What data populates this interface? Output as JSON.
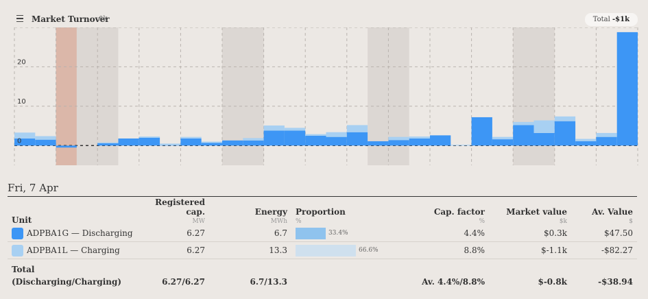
{
  "header": {
    "title": "Market Turnover",
    "unit": "$k",
    "total_label": "Total",
    "total_value": "-$1k"
  },
  "chart_data": {
    "type": "bar",
    "stacked": true,
    "y_ticks": [
      "0",
      "10",
      "20"
    ],
    "ylim": [
      -5,
      30
    ],
    "highlighted_periods": [
      [
        2,
        3
      ],
      [
        3,
        5
      ],
      [
        10,
        12
      ],
      [
        17,
        19
      ],
      [
        24,
        26
      ]
    ],
    "highlight_red_period": [
      2,
      3
    ],
    "series": [
      {
        "name": "ADPBA1G — Discharging",
        "color": "#3d96f5",
        "values": [
          1.8,
          1.5,
          -0.5,
          0,
          0.6,
          1.8,
          2.0,
          0.1,
          1.8,
          0.7,
          1.3,
          1.3,
          3.8,
          3.8,
          2.5,
          2.2,
          3.4,
          1.1,
          1.4,
          1.8,
          2.6,
          0,
          7.2,
          1.6,
          5.2,
          3.2,
          6.2,
          1.1,
          2.2,
          28.8
        ]
      },
      {
        "name": "ADPBA1L — Charging",
        "color": "#a8d0f2",
        "values": [
          1.5,
          0.9,
          0,
          0,
          0.2,
          0,
          0.3,
          0.4,
          0.4,
          0.3,
          0,
          0.6,
          1.3,
          0.7,
          0.4,
          1.2,
          1.8,
          0,
          0.8,
          0.5,
          0,
          0.2,
          0,
          0.6,
          0.8,
          3.2,
          1.2,
          0.6,
          1.0,
          0
        ]
      }
    ]
  },
  "date": "Fri, 7 Apr",
  "table": {
    "headers": {
      "unit": "Unit",
      "reg_cap": "Registered cap.",
      "reg_cap_unit": "MW",
      "energy": "Energy",
      "energy_unit": "MWh",
      "proportion": "Proportion",
      "proportion_unit": "%",
      "cap_factor": "Cap. factor",
      "cap_factor_unit": "%",
      "market_value": "Market value",
      "market_value_unit": "$k",
      "av_value": "Av. Value",
      "av_value_unit": "$"
    },
    "rows": [
      {
        "unit": "ADPBA1G — Discharging",
        "color": "#3d96f5",
        "reg_cap": "6.27",
        "energy": "6.7",
        "proportion": "33.4%",
        "proportion_fraction": 0.334,
        "cap_factor": "4.4%",
        "market_value": "$0.3k",
        "av_value": "$47.50"
      },
      {
        "unit": "ADPBA1L — Charging",
        "color": "#a8d0f2",
        "reg_cap": "6.27",
        "energy": "13.3",
        "proportion": "66.6%",
        "proportion_fraction": 0.666,
        "cap_factor": "8.8%",
        "market_value": "$-1.1k",
        "av_value": "-$82.27"
      }
    ],
    "total": {
      "label1": "Total",
      "label2": "(Discharging/Charging)",
      "reg_cap": "6.27/6.27",
      "energy": "6.7/13.3",
      "cap_factor": "Av. 4.4%/8.8%",
      "market_value": "$-0.8k",
      "av_value": "-$38.94"
    }
  },
  "colors": {
    "discharging": "#3d96f5",
    "charging": "#a8d0f2",
    "discharging_prop": "#8fc3ee",
    "charging_prop": "#cfe0ee",
    "shade": "#d9d3d0",
    "shade_red": "#d8ae9f"
  }
}
